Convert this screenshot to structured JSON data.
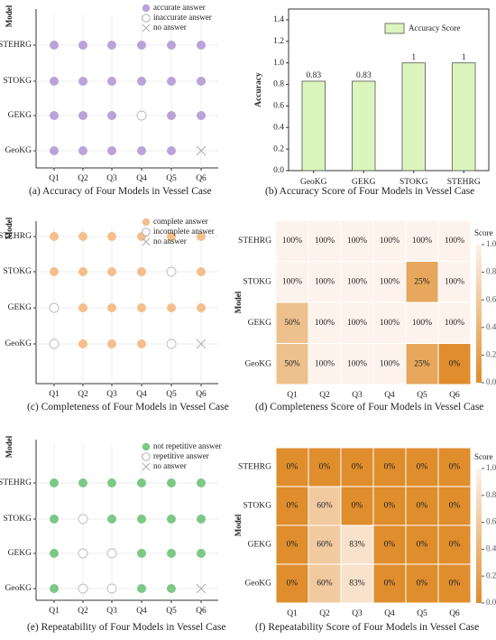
{
  "chart_data": [
    {
      "id": "a",
      "type": "scatter",
      "caption": "(a) Accuracy of Four Models in Vessel Case",
      "ylabel": "Model",
      "categories_x": [
        "Q1",
        "Q2",
        "Q3",
        "Q4",
        "Q5",
        "Q6"
      ],
      "categories_y": [
        "STEHRG",
        "STOKG",
        "GEKG",
        "GeoKG"
      ],
      "legend": [
        {
          "key": "A",
          "label": "accurate answer",
          "style": "filled"
        },
        {
          "key": "I",
          "label": "inaccurate answer",
          "style": "empty"
        },
        {
          "key": "N",
          "label": "no answer",
          "style": "cross"
        }
      ],
      "fill_color": "#b9a3d8",
      "grid": [
        [
          "A",
          "A",
          "A",
          "A",
          "A",
          "A"
        ],
        [
          "A",
          "A",
          "A",
          "A",
          "A",
          "A"
        ],
        [
          "A",
          "A",
          "A",
          "I",
          "A",
          "A"
        ],
        [
          "A",
          "A",
          "A",
          "A",
          "A",
          "N"
        ]
      ]
    },
    {
      "id": "b",
      "type": "bar",
      "caption": "(b) Accuracy Score of Four Models in Vessel Case",
      "ylabel": "Accuracy",
      "categories": [
        "GeoKG",
        "GEKG",
        "STOKG",
        "STEHRG"
      ],
      "values": [
        0.83,
        0.83,
        1,
        1
      ],
      "value_labels": [
        "0.83",
        "0.83",
        "1",
        "1"
      ],
      "legend": [
        "Accuracy Score"
      ],
      "ylim": [
        0,
        1.5
      ],
      "yticks": [
        "0.0",
        "0.2",
        "0.4",
        "0.6",
        "0.8",
        "1.0",
        "1.2",
        "1.4"
      ],
      "bar_color": "#dcf5bd",
      "bar_stroke": "#555555"
    },
    {
      "id": "c",
      "type": "scatter",
      "caption": "(c) Completeness of Four Models in Vessel Case",
      "ylabel": "Model",
      "categories_x": [
        "Q1",
        "Q2",
        "Q3",
        "Q4",
        "Q5",
        "Q6"
      ],
      "categories_y": [
        "STEHRG",
        "STOKG",
        "GEKG",
        "GeoKG"
      ],
      "legend": [
        {
          "key": "A",
          "label": "complete answer",
          "style": "filled"
        },
        {
          "key": "I",
          "label": "incomplete answer",
          "style": "empty"
        },
        {
          "key": "N",
          "label": "no answer",
          "style": "cross"
        }
      ],
      "fill_color": "#f4bf8d",
      "grid": [
        [
          "A",
          "A",
          "A",
          "A",
          "A",
          "A"
        ],
        [
          "A",
          "A",
          "A",
          "A",
          "I",
          "A"
        ],
        [
          "I",
          "A",
          "A",
          "A",
          "A",
          "A"
        ],
        [
          "I",
          "A",
          "A",
          "A",
          "I",
          "N"
        ]
      ]
    },
    {
      "id": "d",
      "type": "heatmap",
      "caption": "(d) Completeness Score of Four Models in Vessel Case",
      "ylabel": "Model",
      "colorbar_label": "Score",
      "colorbar_ticks": [
        "0.0",
        "0.2",
        "0.4",
        "0.6",
        "0.8",
        "1.0"
      ],
      "categories_x": [
        "Q1",
        "Q2",
        "Q3",
        "Q4",
        "Q5",
        "Q6"
      ],
      "categories_y": [
        "STEHRG",
        "STOKG",
        "GEKG",
        "GeoKG"
      ],
      "values": [
        [
          1,
          1,
          1,
          1,
          1,
          1
        ],
        [
          1,
          1,
          1,
          1,
          0.25,
          1
        ],
        [
          0.5,
          1,
          1,
          1,
          1,
          1
        ],
        [
          0.5,
          1,
          1,
          1,
          0.25,
          0
        ]
      ],
      "labels": [
        [
          "100%",
          "100%",
          "100%",
          "100%",
          "100%",
          "100%"
        ],
        [
          "100%",
          "100%",
          "100%",
          "100%",
          "25%",
          "100%"
        ],
        [
          "50%",
          "100%",
          "100%",
          "100%",
          "100%",
          "100%"
        ],
        [
          "50%",
          "100%",
          "100%",
          "100%",
          "25%",
          "0%"
        ]
      ],
      "color_low": "#df8d2d",
      "color_high": "#fdf3ec"
    },
    {
      "id": "e",
      "type": "scatter",
      "caption": "(e) Repeatability of Four Models in Vessel Case",
      "ylabel": "Model",
      "categories_x": [
        "Q1",
        "Q2",
        "Q3",
        "Q4",
        "Q5",
        "Q6"
      ],
      "categories_y": [
        "STEHRG",
        "STOKG",
        "GEKG",
        "GeoKG"
      ],
      "legend": [
        {
          "key": "A",
          "label": "not repetitive answer",
          "style": "filled"
        },
        {
          "key": "I",
          "label": "repetitive answer",
          "style": "empty"
        },
        {
          "key": "N",
          "label": "no answer",
          "style": "cross"
        }
      ],
      "fill_color": "#7cc887",
      "grid": [
        [
          "A",
          "A",
          "A",
          "A",
          "A",
          "A"
        ],
        [
          "A",
          "I",
          "A",
          "A",
          "A",
          "A"
        ],
        [
          "A",
          "I",
          "I",
          "A",
          "A",
          "A"
        ],
        [
          "A",
          "I",
          "I",
          "A",
          "A",
          "N"
        ]
      ]
    },
    {
      "id": "f",
      "type": "heatmap",
      "caption": "(f) Repeatability Score of Four Models in Vessel Case",
      "ylabel": "Model",
      "colorbar_label": "Score",
      "colorbar_ticks": [
        "0.0",
        "0.2",
        "0.4",
        "0.6",
        "0.8",
        "1.0"
      ],
      "categories_x": [
        "Q1",
        "Q2",
        "Q3",
        "Q4",
        "Q5",
        "Q6"
      ],
      "categories_y": [
        "STEHRG",
        "STOKG",
        "GEKG",
        "GeoKG"
      ],
      "values": [
        [
          0,
          0,
          0,
          0,
          0,
          0
        ],
        [
          0,
          0.6,
          0,
          0,
          0,
          0
        ],
        [
          0,
          0.6,
          0.83,
          0,
          0,
          0
        ],
        [
          0,
          0.6,
          0.83,
          0,
          0,
          0
        ]
      ],
      "labels": [
        [
          "0%",
          "0%",
          "0%",
          "0%",
          "0%",
          "0%"
        ],
        [
          "0%",
          "60%",
          "0%",
          "0%",
          "0%",
          "0%"
        ],
        [
          "0%",
          "60%",
          "83%",
          "0%",
          "0%",
          "0%"
        ],
        [
          "0%",
          "60%",
          "83%",
          "0%",
          "0%",
          "0%"
        ]
      ],
      "color_low": "#df8d2d",
      "color_high": "#fdf3ec"
    }
  ]
}
